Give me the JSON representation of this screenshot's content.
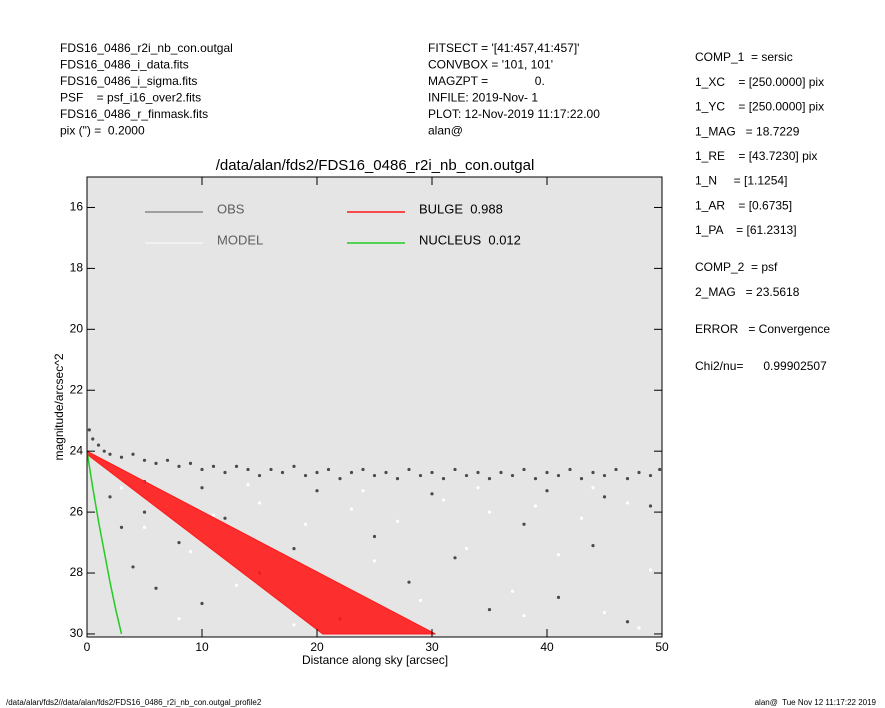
{
  "chart_data": {
    "type": "profile",
    "header_left": [
      "FDS16_0486_r2i_nb_con.outgal",
      "FDS16_0486_i_data.fits",
      "FDS16_0486_i_sigma.fits",
      "PSF    = psf_i16_over2.fits",
      "FDS16_0486_r_finmask.fits",
      "pix (\") =  0.2000"
    ],
    "header_center": [
      "FITSECT = '[41:457,41:457]'",
      "CONVBOX = '101, 101'",
      "MAGZPT =              0.",
      "INFILE: 2019-Nov- 1",
      "PLOT: 12-Nov-2019 11:17:22.00",
      "alan@"
    ],
    "right_panel": [
      [
        "COMP_1  = sersic",
        "1_XC    = [250.0000] pix",
        "1_YC    = [250.0000] pix",
        "1_MAG   = 18.7229",
        "1_RE    = [43.7230] pix",
        "1_N     = [1.1254]",
        "1_AR    = [0.6735]",
        "1_PA    = [61.2313]"
      ],
      [
        "COMP_2  = psf",
        "2_MAG   = 23.5618"
      ],
      [
        "ERROR   = Convergence"
      ],
      [
        "Chi2/nu=      0.99902507"
      ]
    ],
    "title": "/data/alan/fds2/FDS16_0486_r2i_nb_con.outgal",
    "x_label": "Distance along sky [arcsec]",
    "y_label": "magnitude/arcsec^2",
    "xlim": [
      0,
      50
    ],
    "xticks": [
      0,
      10,
      20,
      30,
      40,
      50
    ],
    "ylim": [
      15,
      30.1
    ],
    "y_inverted": true,
    "yticks": [
      16,
      18,
      20,
      22,
      24,
      26,
      28,
      30
    ],
    "background": "#e5e5e5",
    "series": [
      {
        "name": "OBS",
        "type": "scatter",
        "color": "#4a4a4a",
        "x": [
          0.2,
          0.5,
          1,
          1.5,
          2,
          3,
          4,
          5,
          6,
          7,
          8,
          9,
          10,
          11,
          12,
          13,
          14,
          15,
          16,
          17,
          18,
          19,
          20,
          21,
          22,
          23,
          24,
          25,
          26,
          27,
          28,
          29,
          30,
          31,
          32,
          33,
          34,
          35,
          36,
          37,
          38,
          39,
          40,
          41,
          42,
          43,
          44,
          45,
          46,
          47,
          48,
          49,
          49.8,
          2,
          3,
          4,
          5,
          6,
          8,
          10,
          12,
          15,
          18,
          22,
          25,
          28,
          32,
          35,
          38,
          41,
          44,
          47,
          49,
          20,
          30,
          40,
          45,
          10,
          5
        ],
        "values": [
          23.3,
          23.6,
          23.8,
          24.0,
          24.1,
          24.2,
          24.1,
          24.3,
          24.4,
          24.3,
          24.5,
          24.4,
          24.6,
          24.5,
          24.7,
          24.5,
          24.6,
          24.8,
          24.6,
          24.7,
          24.5,
          24.8,
          24.7,
          24.6,
          24.9,
          24.7,
          24.6,
          24.8,
          24.7,
          24.9,
          24.6,
          24.8,
          24.7,
          24.9,
          24.6,
          24.8,
          24.7,
          24.9,
          24.7,
          24.8,
          24.6,
          24.9,
          24.7,
          24.8,
          24.6,
          24.9,
          24.7,
          24.8,
          24.6,
          24.9,
          24.7,
          24.8,
          24.6,
          25.5,
          26.5,
          27.8,
          26,
          28.5,
          27,
          29,
          26.2,
          28,
          27.2,
          29.5,
          26.8,
          28.3,
          27.5,
          29.2,
          26.4,
          28.8,
          27.1,
          29.6,
          25.8,
          25.3,
          25.4,
          25.3,
          25.5,
          25.2,
          25.0
        ]
      },
      {
        "name": "MODEL",
        "type": "scatter",
        "color": "#ffffff",
        "x": [
          3,
          5,
          7,
          9,
          11,
          13,
          15,
          17,
          19,
          21,
          23,
          25,
          27,
          29,
          31,
          33,
          35,
          37,
          39,
          41,
          43,
          45,
          47,
          49,
          8,
          18,
          28,
          38,
          48,
          14,
          24,
          34,
          44
        ],
        "values": [
          25.2,
          26.5,
          25.8,
          27.3,
          26.1,
          28.4,
          25.7,
          27.8,
          26.4,
          29.1,
          25.9,
          27.6,
          26.3,
          28.9,
          25.6,
          27.2,
          26.0,
          28.6,
          25.8,
          27.4,
          26.2,
          29.3,
          25.7,
          27.9,
          29.5,
          29.7,
          29.8,
          29.4,
          29.8,
          25.1,
          25.3,
          25.2,
          25.2
        ]
      },
      {
        "name": "BULGE  0.988",
        "type": "area",
        "color": "#ff1a1a",
        "x": [
          0,
          30.3,
          20.5,
          0
        ],
        "values": [
          24.0,
          30.0,
          30.0,
          24.1
        ]
      },
      {
        "name": "NUCLEUS  0.012",
        "type": "line",
        "color": "#22cc22",
        "x": [
          0,
          0.5,
          1,
          1.5,
          2,
          2.5,
          3.0
        ],
        "values": [
          24.0,
          25.2,
          26.3,
          27.3,
          28.3,
          29.2,
          30.0
        ]
      }
    ],
    "footer_left": "/data/alan/fds2//data/alan/fds2/FDS16_0486_r2i_nb_con.outgal_profile2",
    "footer_right": "alan@  Tue Nov 12 11:17:22 2019"
  }
}
